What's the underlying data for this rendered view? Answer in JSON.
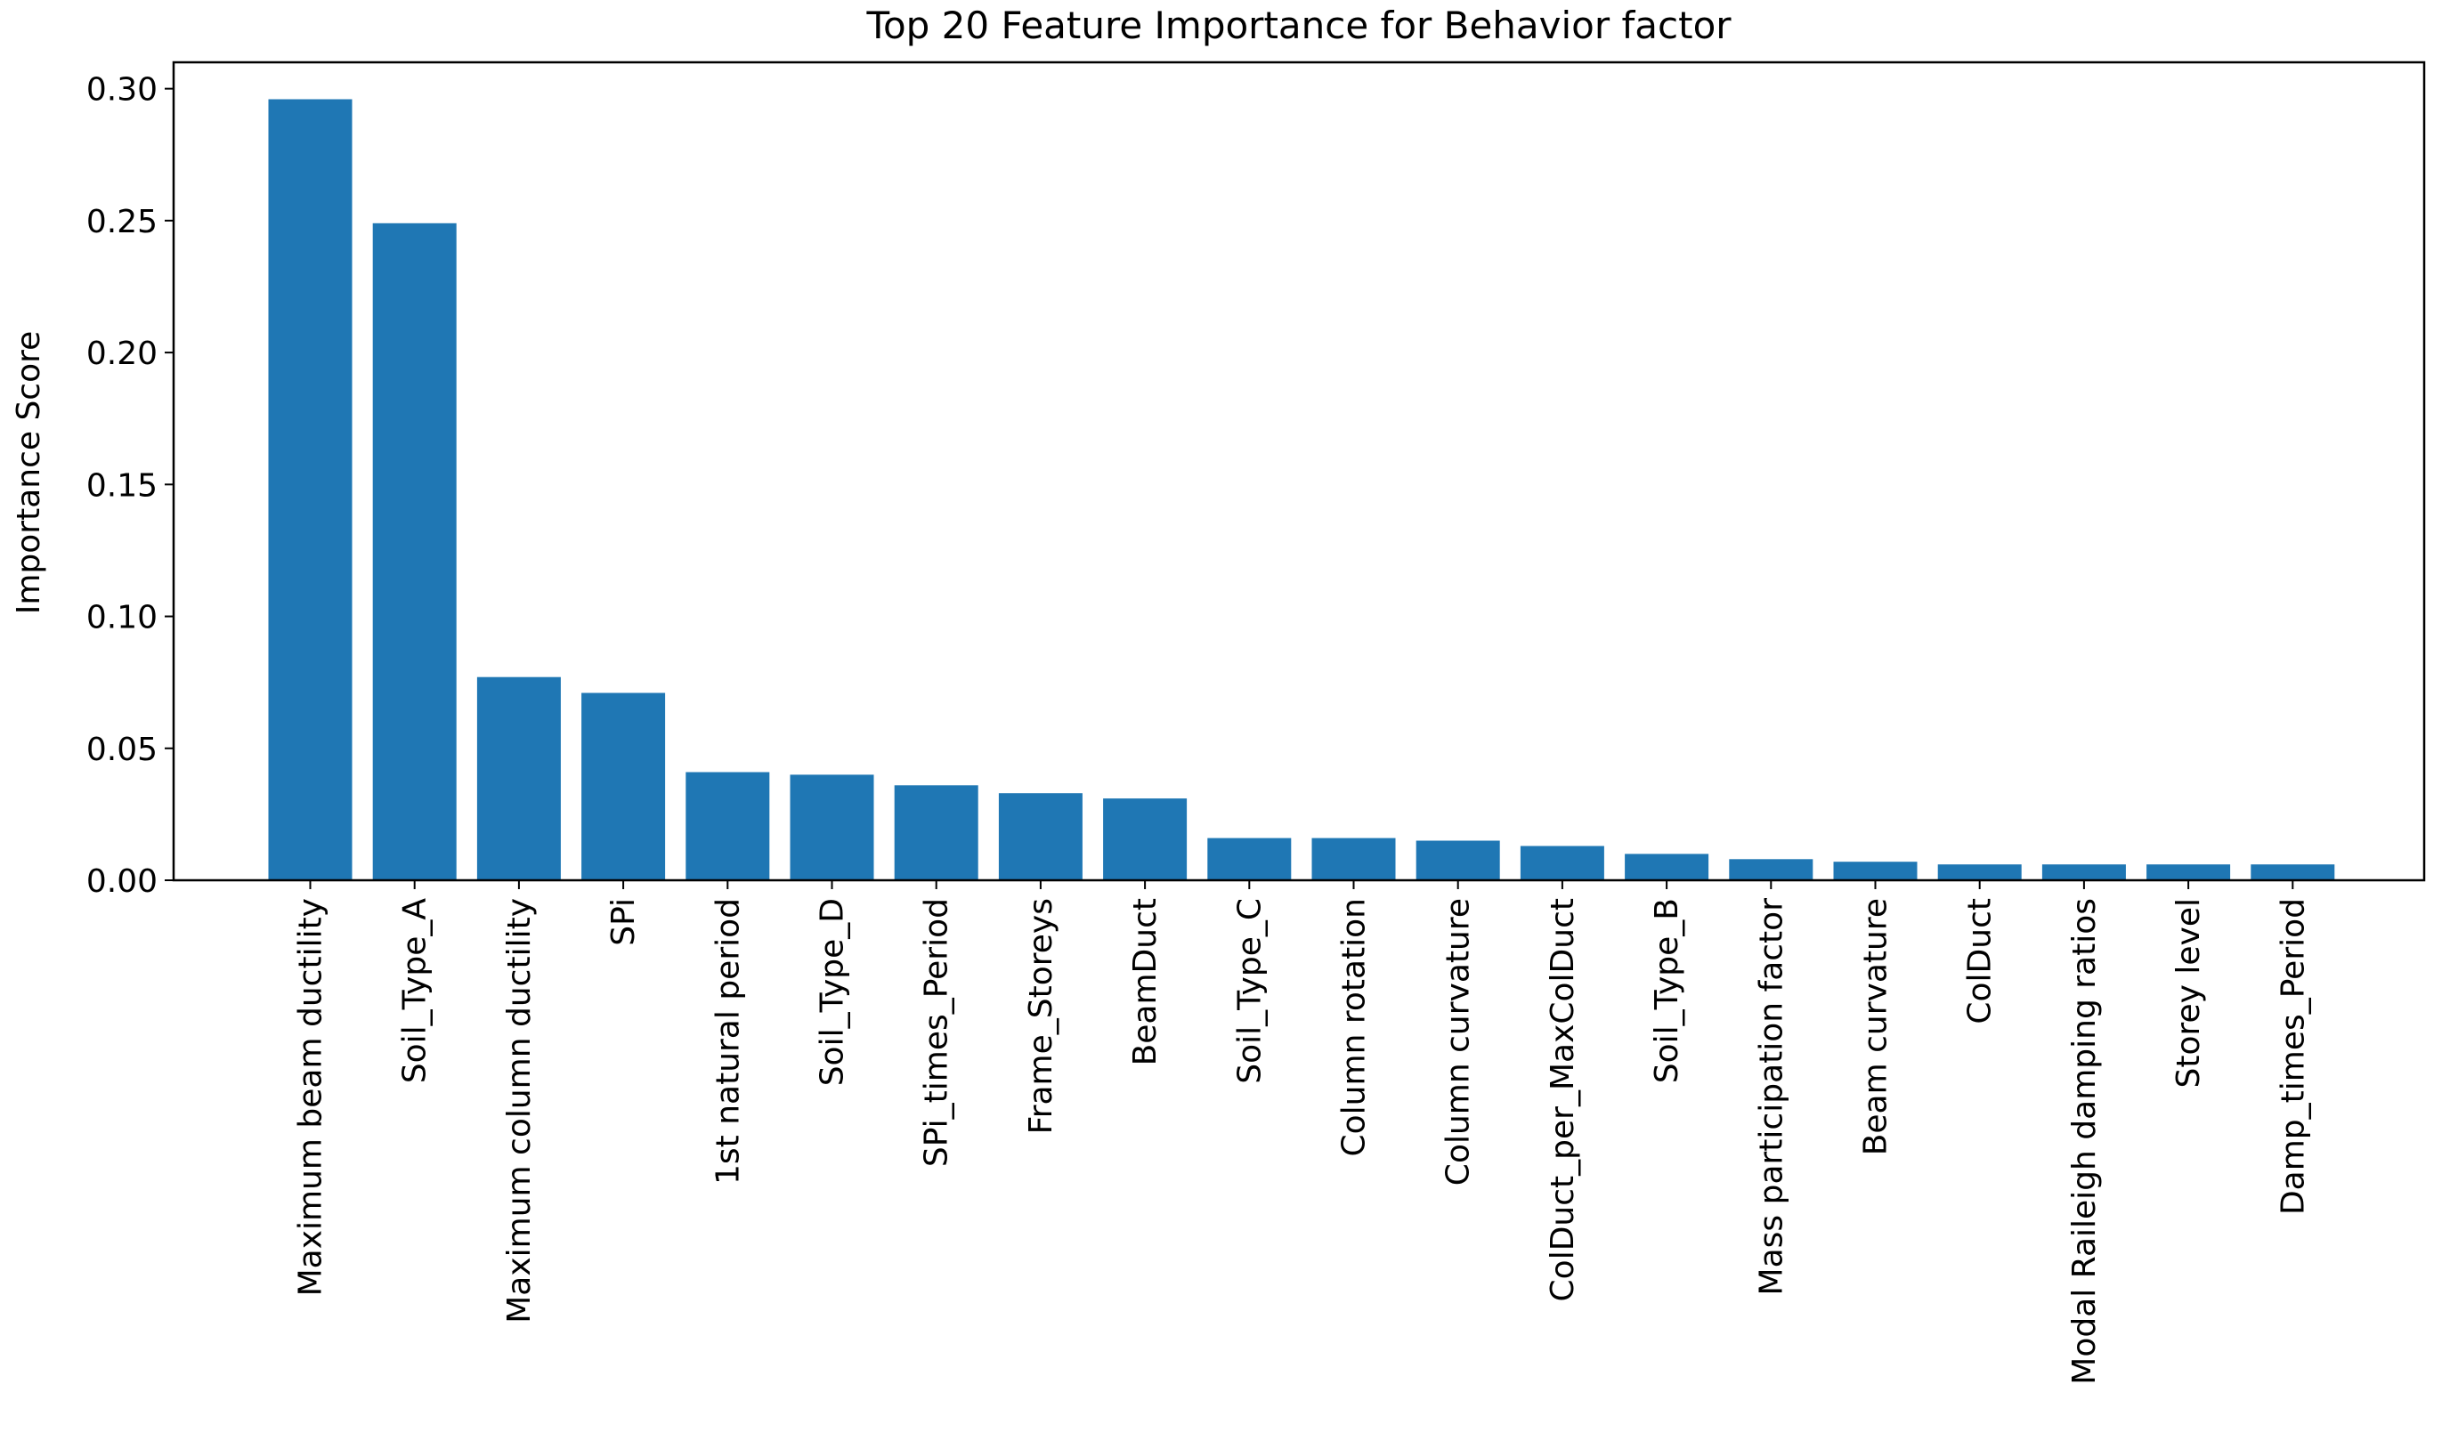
{
  "chart_data": {
    "type": "bar",
    "title": "Top 20 Feature Importance for Behavior factor",
    "xlabel": "",
    "ylabel": "Importance Score",
    "ylim": [
      0,
      0.31
    ],
    "yticks": [
      "0.00",
      "0.05",
      "0.10",
      "0.15",
      "0.20",
      "0.25",
      "0.30"
    ],
    "grid": false,
    "bar_color": "#1f77b4",
    "categories": [
      "Maximum beam ductility",
      "Soil_Type_A",
      "Maximum column ductility",
      "SPi",
      "1st natural period",
      "Soil_Type_D",
      "SPi_times_Period",
      "Frame_Storeys",
      "BeamDuct",
      "Soil_Type_C",
      "Column rotation",
      "Column curvature",
      "ColDuct_per_MaxColDuct",
      "Soil_Type_B",
      "Mass participation factor",
      "Beam curvature",
      "ColDuct",
      "Modal Raileigh damping ratios",
      "Storey level",
      "Damp_times_Period"
    ],
    "values": [
      0.296,
      0.249,
      0.077,
      0.071,
      0.041,
      0.04,
      0.036,
      0.033,
      0.031,
      0.016,
      0.016,
      0.015,
      0.013,
      0.01,
      0.008,
      0.007,
      0.006,
      0.006,
      0.006,
      0.006
    ]
  }
}
